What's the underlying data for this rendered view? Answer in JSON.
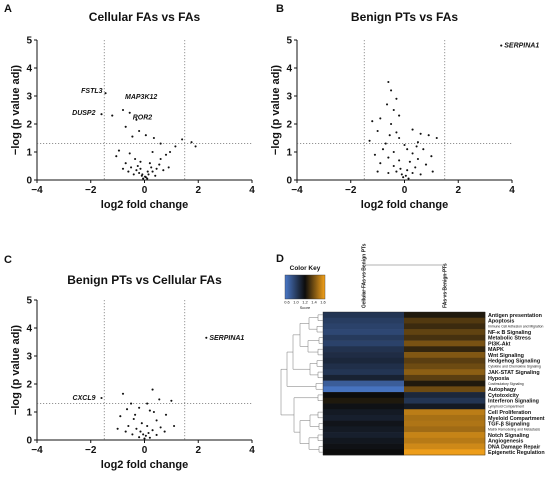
{
  "chart_data": [
    {
      "panel": "A",
      "type": "scatter",
      "title": "Cellular FAs vs FAs",
      "xlabel": "log2 fold change",
      "ylabel": "−log (p value adj)",
      "xlim": [
        -4,
        4
      ],
      "ylim": [
        0,
        5
      ],
      "xticks": [
        "−4",
        "−2",
        "0",
        "2",
        "4"
      ],
      "yticks": [
        "0",
        "1",
        "2",
        "3",
        "4",
        "5"
      ],
      "vlines": [
        -1.5,
        1.5
      ],
      "hline": 1.3,
      "points": [
        [
          -1.45,
          3.1
        ],
        [
          -1.6,
          2.35
        ],
        [
          -1.2,
          2.3
        ],
        [
          -0.55,
          2.4
        ],
        [
          -0.8,
          2.5
        ],
        [
          -0.3,
          2.15
        ],
        [
          -0.7,
          1.9
        ],
        [
          -0.2,
          1.75
        ],
        [
          -0.45,
          1.55
        ],
        [
          0.05,
          1.6
        ],
        [
          0.35,
          1.5
        ],
        [
          0.6,
          1.3
        ],
        [
          1.4,
          1.45
        ],
        [
          1.75,
          1.35
        ],
        [
          1.9,
          1.2
        ],
        [
          1.15,
          1.2
        ],
        [
          -0.95,
          1.05
        ],
        [
          -1.05,
          0.85
        ],
        [
          -0.55,
          0.95
        ],
        [
          0.3,
          1.0
        ],
        [
          0.8,
          0.9
        ],
        [
          0.95,
          1.0
        ],
        [
          -0.35,
          0.75
        ],
        [
          0.6,
          0.75
        ],
        [
          -0.15,
          0.65
        ],
        [
          0.2,
          0.6
        ],
        [
          -0.7,
          0.6
        ],
        [
          0.55,
          0.55
        ],
        [
          -0.5,
          0.45
        ],
        [
          0.45,
          0.4
        ],
        [
          -0.3,
          0.35
        ],
        [
          0.3,
          0.3
        ],
        [
          -0.2,
          0.25
        ],
        [
          0.15,
          0.2
        ],
        [
          -0.1,
          0.15
        ],
        [
          0.05,
          0.1
        ],
        [
          -0.05,
          0.05
        ],
        [
          0.1,
          0.05
        ],
        [
          -0.4,
          0.2
        ],
        [
          0.4,
          0.15
        ],
        [
          -0.6,
          0.3
        ],
        [
          0.7,
          0.35
        ],
        [
          -0.8,
          0.4
        ],
        [
          0.9,
          0.45
        ],
        [
          -0.25,
          0.5
        ],
        [
          0.25,
          0.45
        ],
        [
          -0.15,
          0.4
        ],
        [
          0.12,
          0.3
        ],
        [
          -0.08,
          0.2
        ],
        [
          0.02,
          0.12
        ]
      ],
      "annotations": [
        {
          "label": "FSTL3",
          "x": -1.45,
          "y": 3.1
        },
        {
          "label": "MAP3K12",
          "x": -0.8,
          "y": 2.85
        },
        {
          "label": "DUSP2",
          "x": -1.6,
          "y": 2.35
        },
        {
          "label": "ROR2",
          "x": -0.55,
          "y": 2.2
        }
      ]
    },
    {
      "panel": "B",
      "type": "scatter",
      "title": "Benign PTs vs FAs",
      "xlabel": "log2 fold change",
      "ylabel": "−log (p value adj)",
      "xlim": [
        -4,
        4
      ],
      "ylim": [
        0,
        5
      ],
      "xticks": [
        "−4",
        "−2",
        "0",
        "2",
        "4"
      ],
      "yticks": [
        "0",
        "1",
        "2",
        "3",
        "4",
        "5"
      ],
      "vlines": [
        -1.5,
        1.5
      ],
      "hline": 1.3,
      "points": [
        [
          3.6,
          4.8
        ],
        [
          -0.6,
          3.5
        ],
        [
          -0.5,
          3.2
        ],
        [
          -0.3,
          2.9
        ],
        [
          -0.65,
          2.7
        ],
        [
          -0.4,
          2.5
        ],
        [
          -1.2,
          2.1
        ],
        [
          -0.9,
          2.2
        ],
        [
          -0.2,
          2.3
        ],
        [
          -0.5,
          2.0
        ],
        [
          -1.0,
          1.75
        ],
        [
          -0.3,
          1.7
        ],
        [
          0.3,
          1.8
        ],
        [
          0.6,
          1.65
        ],
        [
          0.9,
          1.6
        ],
        [
          1.2,
          1.5
        ],
        [
          -1.3,
          1.4
        ],
        [
          0.5,
          1.35
        ],
        [
          -0.7,
          1.3
        ],
        [
          0.0,
          1.25
        ],
        [
          -0.8,
          1.1
        ],
        [
          0.7,
          1.1
        ],
        [
          -0.4,
          1.0
        ],
        [
          0.3,
          0.95
        ],
        [
          -1.1,
          0.9
        ],
        [
          1.0,
          0.85
        ],
        [
          -0.6,
          0.8
        ],
        [
          0.5,
          0.75
        ],
        [
          -0.2,
          0.7
        ],
        [
          0.2,
          0.65
        ],
        [
          -0.9,
          0.6
        ],
        [
          0.8,
          0.55
        ],
        [
          -0.4,
          0.5
        ],
        [
          0.4,
          0.45
        ],
        [
          -0.15,
          0.4
        ],
        [
          0.1,
          0.35
        ],
        [
          -0.3,
          0.3
        ],
        [
          0.3,
          0.25
        ],
        [
          -0.1,
          0.2
        ],
        [
          0.05,
          0.15
        ],
        [
          -0.05,
          0.1
        ],
        [
          0.15,
          0.05
        ],
        [
          -0.6,
          0.25
        ],
        [
          0.6,
          0.2
        ],
        [
          -1.0,
          0.3
        ],
        [
          1.05,
          0.3
        ],
        [
          -0.2,
          1.5
        ],
        [
          0.1,
          1.1
        ],
        [
          -0.55,
          1.6
        ],
        [
          0.45,
          1.2
        ]
      ],
      "annotations": [
        {
          "label": "SERPINA1",
          "x": 3.6,
          "y": 4.8
        }
      ]
    },
    {
      "panel": "C",
      "type": "scatter",
      "title": "Benign PTs vs Cellular FAs",
      "xlabel": "log2 fold change",
      "ylabel": "−log (p value adj)",
      "xlim": [
        -4,
        4
      ],
      "ylim": [
        0,
        5
      ],
      "xticks": [
        "−4",
        "−2",
        "0",
        "2",
        "4"
      ],
      "yticks": [
        "0",
        "1",
        "2",
        "3",
        "4",
        "5"
      ],
      "vlines": [
        -1.5,
        1.5
      ],
      "hline": 1.3,
      "points": [
        [
          2.3,
          3.65
        ],
        [
          -1.6,
          1.5
        ],
        [
          -0.8,
          1.65
        ],
        [
          0.3,
          1.8
        ],
        [
          0.55,
          1.45
        ],
        [
          1.0,
          1.4
        ],
        [
          -0.5,
          1.3
        ],
        [
          -0.2,
          1.15
        ],
        [
          0.2,
          1.05
        ],
        [
          0.8,
          0.9
        ],
        [
          -0.9,
          0.85
        ],
        [
          -0.4,
          0.75
        ],
        [
          0.45,
          0.7
        ],
        [
          -0.1,
          0.6
        ],
        [
          0.1,
          0.5
        ],
        [
          -0.6,
          0.5
        ],
        [
          0.6,
          0.45
        ],
        [
          -0.3,
          0.4
        ],
        [
          0.3,
          0.35
        ],
        [
          -0.15,
          0.3
        ],
        [
          0.15,
          0.25
        ],
        [
          -0.05,
          0.2
        ],
        [
          0.05,
          0.15
        ],
        [
          -0.2,
          0.1
        ],
        [
          0.2,
          0.08
        ],
        [
          0.0,
          0.05
        ],
        [
          -0.45,
          0.2
        ],
        [
          0.45,
          0.18
        ],
        [
          -0.7,
          0.3
        ],
        [
          0.75,
          0.3
        ],
        [
          -1.0,
          0.4
        ],
        [
          1.1,
          0.5
        ],
        [
          -0.35,
          0.9
        ],
        [
          0.35,
          1.0
        ],
        [
          -0.65,
          1.1
        ],
        [
          0.1,
          1.3
        ]
      ],
      "annotations": [
        {
          "label": "SERPINA1",
          "x": 2.3,
          "y": 3.65
        },
        {
          "label": "CXCL9",
          "x": -1.6,
          "y": 1.5
        }
      ]
    },
    {
      "panel": "D",
      "type": "heatmap",
      "title": "",
      "columns": [
        "Cellular FAs vs Benign PTs",
        "FAs vs Benign PTs"
      ],
      "color_key": {
        "title": "Color Key",
        "xlabel": "Score",
        "ticks": [
          "0.6",
          "1.0",
          "1.2",
          "1.4",
          "1.6"
        ],
        "low_color": "#4a78c8",
        "mid_color": "#0c0c0c",
        "high_color": "#f5a21a"
      },
      "rows": [
        {
          "label": "Antigen  presentation",
          "sub": "",
          "values": [
            0.85,
            1.05
          ]
        },
        {
          "label": "Apoptosis",
          "sub": "",
          "values": [
            0.82,
            1.18
          ]
        },
        {
          "label": "",
          "sub": "Immune  Cell  Adhesion  and  Migration",
          "values": [
            0.8,
            1.12
          ]
        },
        {
          "label": "NF-κ B Signaling",
          "sub": "",
          "values": [
            0.78,
            1.22
          ]
        },
        {
          "label": "Metabolic  Stress",
          "sub": "",
          "values": [
            0.83,
            1.15
          ]
        },
        {
          "label": "PI3K-Akt",
          "sub": "",
          "values": [
            0.8,
            1.28
          ]
        },
        {
          "label": "MAPK",
          "sub": "",
          "values": [
            0.86,
            1.1
          ]
        },
        {
          "label": "Wnt Signaling",
          "sub": "",
          "values": [
            0.88,
            1.3
          ]
        },
        {
          "label": "Hedgehog  Signaling",
          "sub": "",
          "values": [
            0.9,
            1.2
          ]
        },
        {
          "label": "",
          "sub": "Cytokine  and  Chemokine  Signaling",
          "values": [
            0.87,
            1.25
          ]
        },
        {
          "label": "JAK-STAT  Signaling",
          "sub": "",
          "values": [
            0.85,
            1.33
          ]
        },
        {
          "label": "Hypoxia",
          "sub": "",
          "values": [
            0.92,
            1.2
          ]
        },
        {
          "label": "",
          "sub": "Costimulatory  Signaling",
          "values": [
            0.7,
            1.05
          ]
        },
        {
          "label": "Autophagy",
          "sub": "",
          "values": [
            0.62,
            1.25
          ]
        },
        {
          "label": "Cytotoxicity",
          "sub": "",
          "values": [
            1.0,
            0.9
          ]
        },
        {
          "label": "Interferon  Signaling",
          "sub": "",
          "values": [
            1.05,
            0.85
          ]
        },
        {
          "label": "",
          "sub": "Lymphoid  Compartment",
          "values": [
            0.98,
            0.95
          ]
        },
        {
          "label": "Cell Proliferation",
          "sub": "",
          "values": [
            0.95,
            1.45
          ]
        },
        {
          "label": "Myeloid  Compartment",
          "sub": "",
          "values": [
            0.93,
            1.4
          ]
        },
        {
          "label": "TGF-β Signaling",
          "sub": "",
          "values": [
            0.97,
            1.42
          ]
        },
        {
          "label": "",
          "sub": "Matrix  Remodeling  and  Metastasis",
          "values": [
            0.95,
            1.38
          ]
        },
        {
          "label": "Notch  Signaling",
          "sub": "",
          "values": [
            0.93,
            1.48
          ]
        },
        {
          "label": "Angiogenesis",
          "sub": "",
          "values": [
            0.96,
            1.44
          ]
        },
        {
          "label": "DNA Damage Repair",
          "sub": "",
          "values": [
            0.98,
            1.5
          ]
        },
        {
          "label": "Epigenetic  Regulation",
          "sub": "",
          "values": [
            1.0,
            1.58
          ]
        }
      ]
    }
  ]
}
